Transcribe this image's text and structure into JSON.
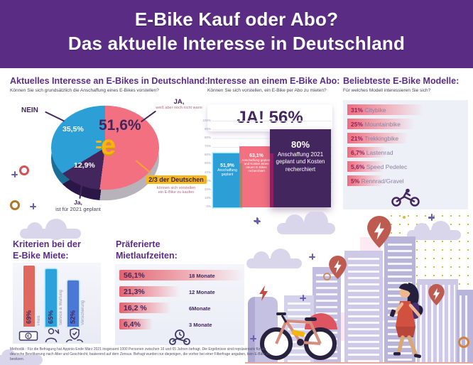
{
  "colors": {
    "header_bg": "#5b2c83",
    "heading": "#5b2d86",
    "pink": "#f2707f",
    "blue": "#2b9fd6",
    "dark_purple": "#44265e",
    "yellow": "#f6b40e",
    "panel": "#eef0f8"
  },
  "header": {
    "title_line1": "E-Bike Kauf oder Abo?",
    "title_line2": "Das aktuelle Interesse in Deutschland"
  },
  "interest": {
    "title": "Aktuelles Interesse an E-Bikes in Deutschland:",
    "subtitle": "Können Sie sich grundsätzlich die Anschaffung eines E-Bikes vorstellen?",
    "labels": {
      "nein": "NEIN",
      "nein_pct": "35,5%",
      "ja_wann": "JA,",
      "ja_wann_sub": "weiß aber noch nicht wann",
      "ja_wann_pct": "51,6%",
      "ja_2021_pct": "12,9%",
      "ja_2021": "Ja,",
      "ja_2021_sub": "ist für 2021 geplant",
      "callout_highlight": "2/3 der Deutschen",
      "callout_sub1": "können sich vorstellen",
      "callout_sub2": "ein E-Bike zu kaufen"
    }
  },
  "abo": {
    "title": "Interesse an einem E-Bike Abo:",
    "subtitle": "Können Sie sich vorstellen, ein E-Bike per Abo zu mieten?",
    "banner": "JA! 56%",
    "axis": [
      "100%",
      "90%",
      "80%",
      "70%",
      "60%",
      "50%",
      "40%",
      "30%",
      "20%",
      "10%",
      "0%"
    ],
    "bars": [
      {
        "pct": "51,9%",
        "label": "Anschaffung geplant",
        "value": 51.9
      },
      {
        "pct": "63,1%",
        "label": "Anschaffung geplant und Kosten eines neuen E-Bikes recherchiert",
        "value": 63.1
      },
      {
        "pct": "80%",
        "label": "Anschaffung 2021 geplant und Kosten recherchiert",
        "value": 80
      }
    ]
  },
  "models": {
    "title": "Beliebteste E-Bike Modelle:",
    "subtitle": "Für welches Modell interessieren Sie sich?",
    "rows": [
      {
        "pct": "31%",
        "label": "Citybike",
        "value": 31
      },
      {
        "pct": "25%",
        "label": "Mountainbike",
        "value": 25
      },
      {
        "pct": "21%",
        "label": "Trekkingbike",
        "value": 21
      },
      {
        "pct": "6,7%",
        "label": "Lastenrad",
        "value": 6.7
      },
      {
        "pct": "5,6%",
        "label": "Speed Pedelec",
        "value": 5.6
      },
      {
        "pct": "5%",
        "label": "Rennrad/Gravel",
        "value": 5
      }
    ]
  },
  "criteria": {
    "title_line1": "Kriterien bei der",
    "title_line2": "E-Bike Miete:",
    "bars": [
      {
        "pct": "69%",
        "label": "Preis",
        "value": 69,
        "color": "#e0695f"
      },
      {
        "pct": "65%",
        "label": "Service & Wartung",
        "value": 65,
        "color": "#2ba2db"
      },
      {
        "pct": "52%",
        "label": "Versicherung",
        "value": 52,
        "color": "#4b77d6"
      }
    ]
  },
  "durations": {
    "title_line1": "Präferierte",
    "title_line2": "Mietlaufzeiten:",
    "rows": [
      {
        "pct": "56,1%",
        "label": "18 Monate",
        "value": 56.1
      },
      {
        "pct": "21,3%",
        "label": "12 Monate",
        "value": 21.3
      },
      {
        "pct": "16,2 %",
        "label": "6Monate",
        "value": 16.2
      },
      {
        "pct": "6,4%",
        "label": "3 Monate",
        "value": 6.4
      }
    ]
  },
  "methodology": "Methodik - Für die Befragung hat Appinio Ende März 2021 insgesamt 1000 Personen zwischen 16 und 65 Jahren befragt. Die Ergebnisse sind repräsentativ für die deutsche Bevölkerung nach Alter und Geschlecht, basierend auf dem Zensus. Befragt wurden nur diejenigen, die vorher bei einer Filterfrage angaben, kein E-Bike zu besitzen.",
  "chart_data": [
    {
      "type": "pie",
      "title": "Aktuelles Interesse an E-Bikes in Deutschland:",
      "subtitle": "Können Sie sich grundsätzlich die Anschaffung eines E-Bikes vorstellen?",
      "categories": [
        "JA, weiß aber noch nicht wann",
        "NEIN",
        "Ja, ist für 2021 geplant"
      ],
      "values": [
        51.6,
        35.5,
        12.9
      ],
      "colors": [
        "#f2707f",
        "#2b9fd6",
        "#44265e"
      ],
      "base_colors": [
        "#b8b2ba",
        "#1a6d95",
        "#2a1747"
      ],
      "annotation": "2/3 der Deutschen können sich vorstellen ein E-Bike zu kaufen"
    },
    {
      "type": "bar",
      "title": "Interesse an einem E-Bike Abo:",
      "subtitle": "Können Sie sich vorstellen, ein E-Bike per Abo zu mieten?",
      "banner": "JA! 56%",
      "categories": [
        "Anschaffung geplant",
        "Anschaffung geplant und Kosten eines neuen E-Bikes recherchiert",
        "Anschaffung 2021 geplant und Kosten recherchiert"
      ],
      "values": [
        51.9,
        63.1,
        80
      ],
      "ylim": [
        0,
        100
      ],
      "ytick_step": 10,
      "grid": true,
      "colors": [
        "#2b9fd6",
        "#f2707f",
        "#44265e"
      ]
    },
    {
      "type": "bar",
      "orientation": "horizontal",
      "title": "Beliebteste E-Bike Modelle:",
      "subtitle": "Für welches Modell interessieren Sie sich?",
      "categories": [
        "Citybike",
        "Mountainbike",
        "Trekkingbike",
        "Lastenrad",
        "Speed Pedelec",
        "Rennrad/Gravel"
      ],
      "values": [
        31,
        25,
        21,
        6.7,
        5.6,
        5
      ]
    },
    {
      "type": "bar",
      "title": "Kriterien bei der E-Bike Miete:",
      "categories": [
        "Preis",
        "Service & Wartung",
        "Versicherung"
      ],
      "values": [
        69,
        65,
        52
      ],
      "colors": [
        "#e0695f",
        "#2ba2db",
        "#4b77d6"
      ]
    },
    {
      "type": "bar",
      "orientation": "horizontal",
      "title": "Präferierte Mietlaufzeiten:",
      "categories": [
        "18 Monate",
        "12 Monate",
        "6Monate",
        "3 Monate"
      ],
      "values": [
        56.1,
        21.3,
        16.2,
        6.4
      ]
    }
  ]
}
